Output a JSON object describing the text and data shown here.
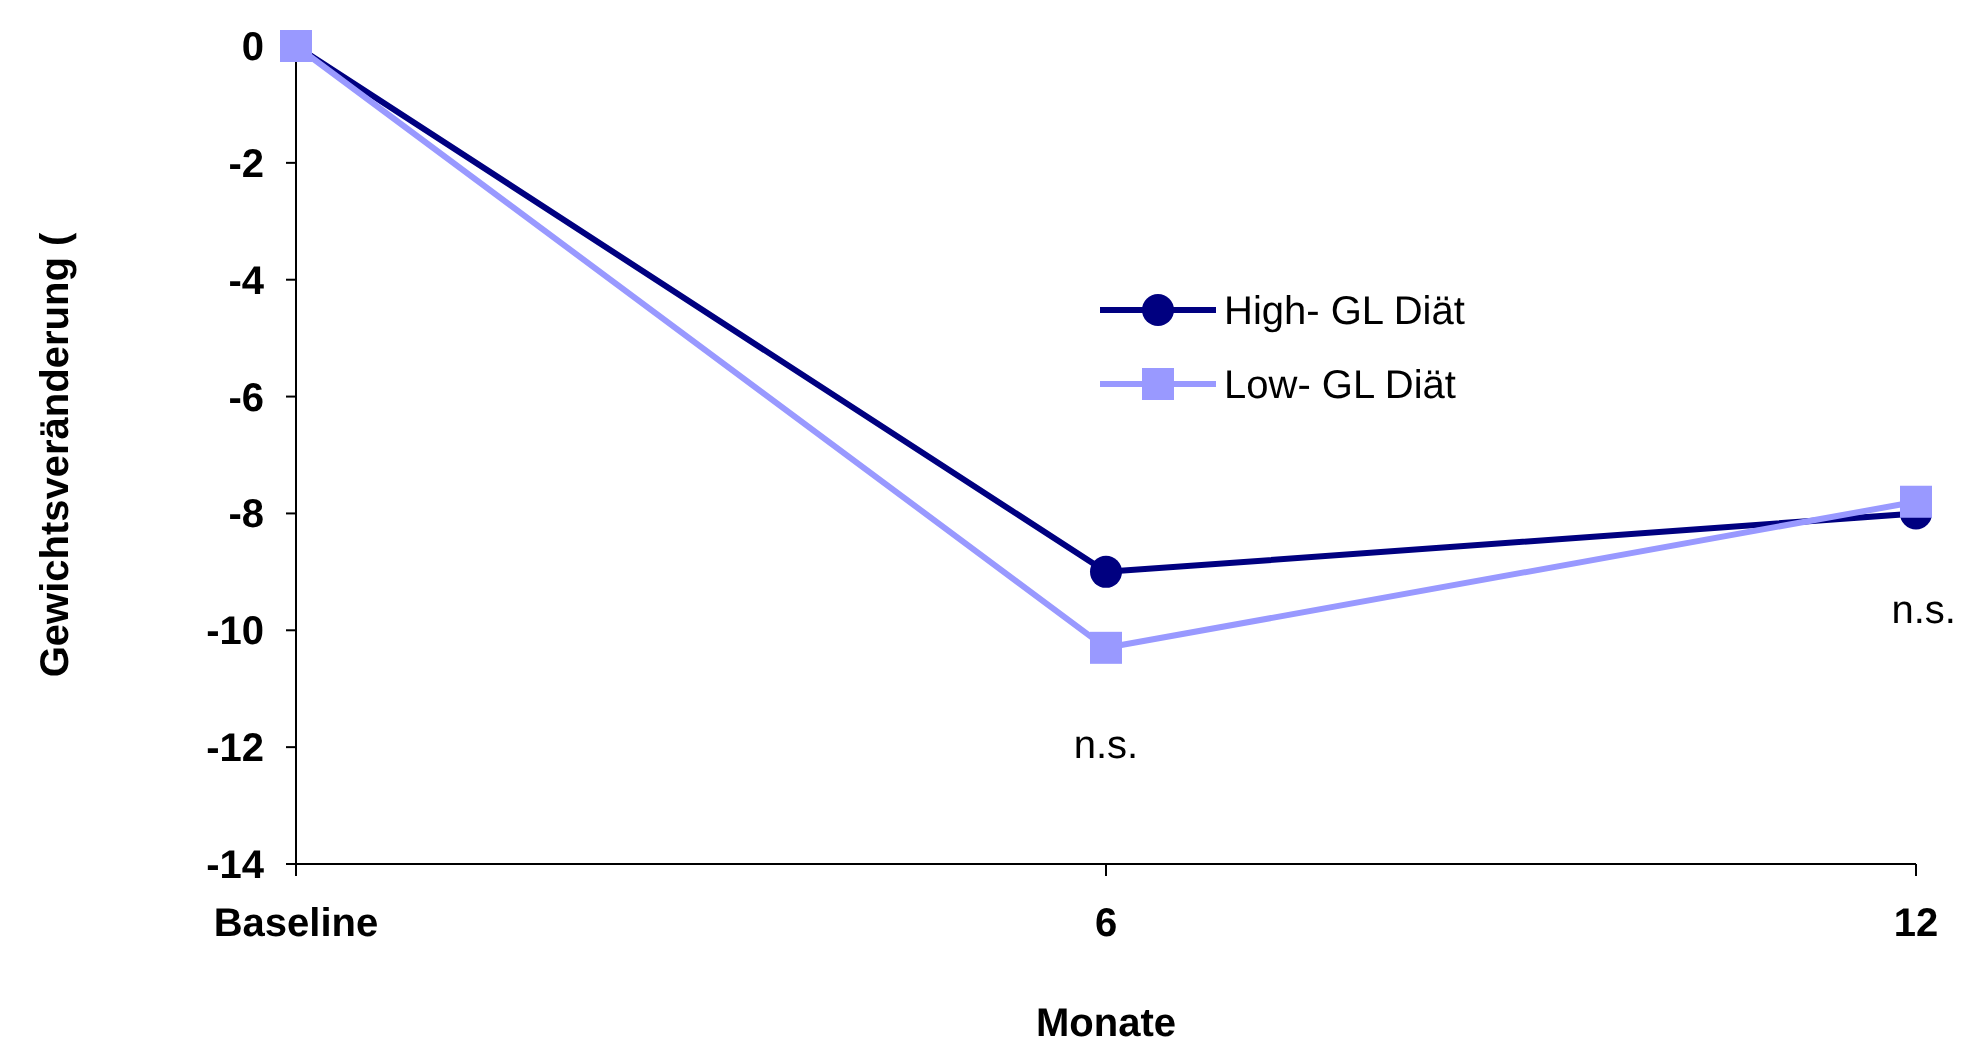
{
  "chart_data": {
    "type": "line",
    "xlabel": "Monate",
    "ylabel": "Gewichtsveränderung (",
    "categories": [
      "Baseline",
      "6",
      "12"
    ],
    "series": [
      {
        "name": "High- GL Diät",
        "color": "#000080",
        "marker": "circle",
        "values": [
          0,
          -9.0,
          -8.0
        ]
      },
      {
        "name": "Low- GL Diät",
        "color": "#9999ff",
        "marker": "square",
        "values": [
          0,
          -10.3,
          -7.8
        ]
      }
    ],
    "ylim": [
      -14,
      0
    ],
    "yticks": [
      -14,
      -12,
      -10,
      -8,
      -6,
      -4,
      -2,
      0
    ],
    "grid": false,
    "legend": "center",
    "annotations": [
      "n.s.",
      "n.s."
    ]
  }
}
